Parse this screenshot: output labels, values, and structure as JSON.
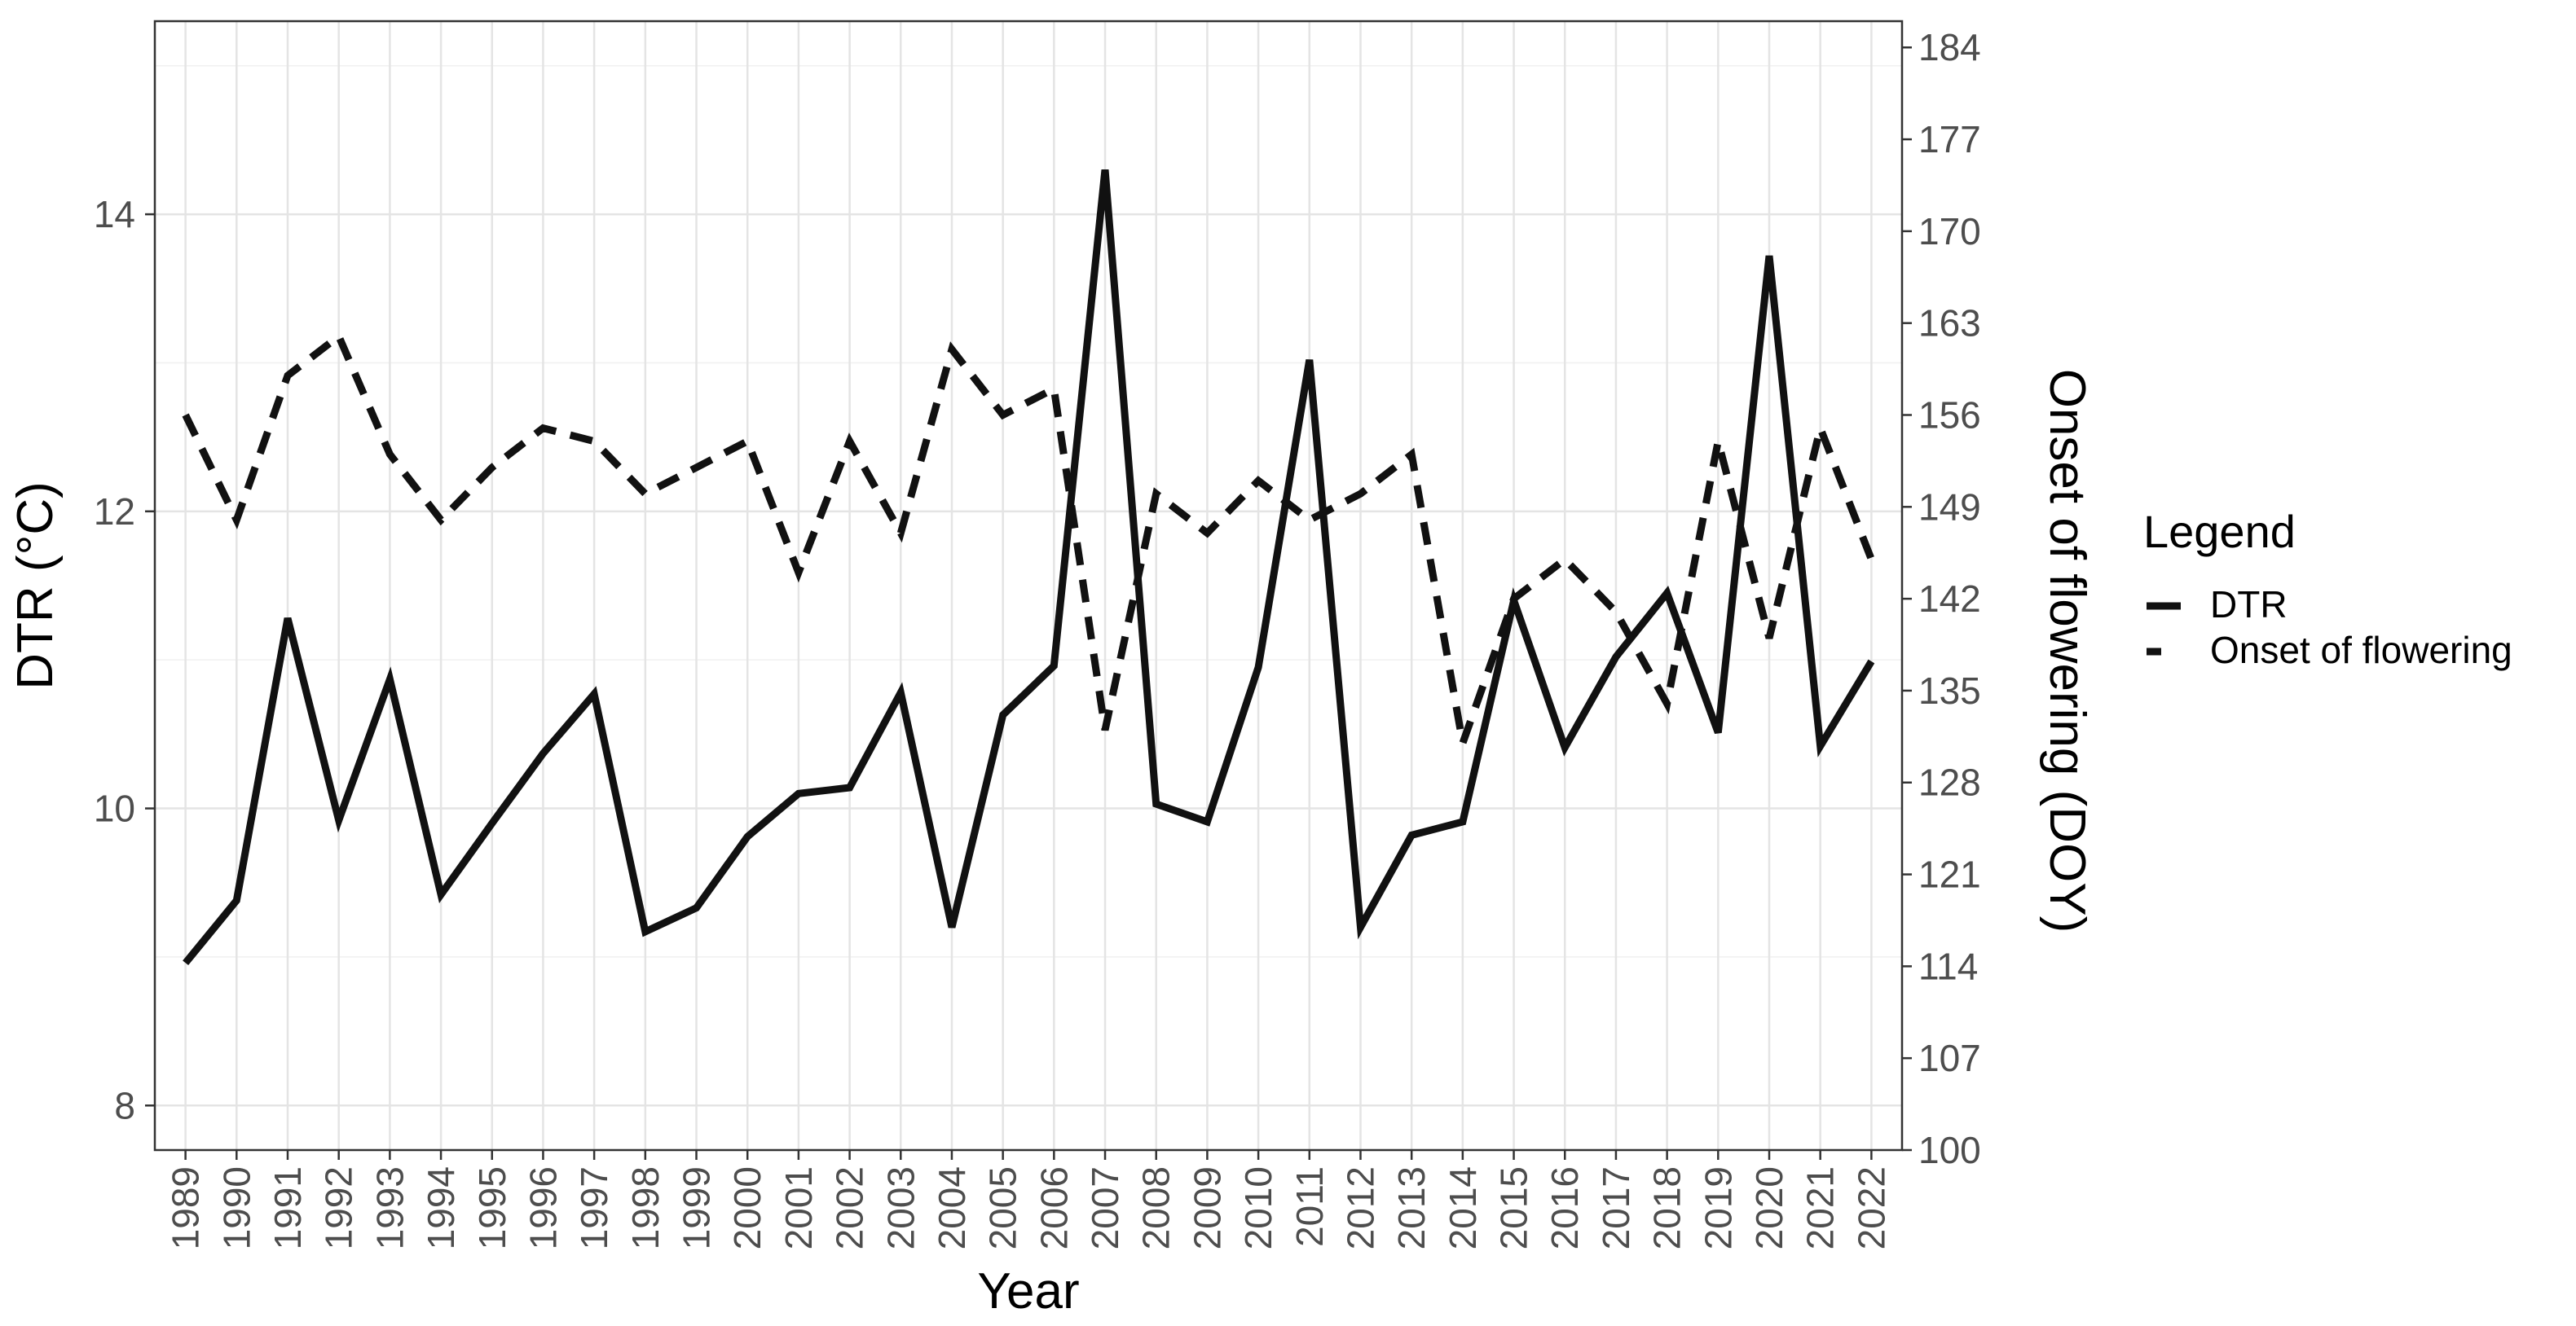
{
  "chart_data": {
    "type": "line",
    "title": "",
    "xlabel": "Year",
    "ylabel": "DTR (°C)",
    "y2label": "Onset of flowering (DOY)",
    "x": [
      1989,
      1990,
      1991,
      1992,
      1993,
      1994,
      1995,
      1996,
      1997,
      1998,
      1999,
      2000,
      2001,
      2002,
      2003,
      2004,
      2005,
      2006,
      2007,
      2008,
      2009,
      2010,
      2011,
      2012,
      2013,
      2014,
      2015,
      2016,
      2017,
      2018,
      2019,
      2020,
      2021,
      2022
    ],
    "x_tick_labels": [
      "1989",
      "1990",
      "1991",
      "1992",
      "1993",
      "1994",
      "1995",
      "1996",
      "1997",
      "1998",
      "1999",
      "2000",
      "2001",
      "2002",
      "2003",
      "2004",
      "2005",
      "2006",
      "2007",
      "2008",
      "2009",
      "2010",
      "2011",
      "2012",
      "2013",
      "2014",
      "2015",
      "2016",
      "2017",
      "2018",
      "2019",
      "2020",
      "2021",
      "2022"
    ],
    "ylim": [
      7.7,
      15.3
    ],
    "y_ticks": [
      8,
      10,
      12,
      14
    ],
    "y_tick_labels": [
      "8",
      "10",
      "12",
      "14"
    ],
    "y2lim": [
      100,
      186
    ],
    "y2_ticks": [
      100,
      107,
      114,
      121,
      128,
      135,
      142,
      149,
      156,
      163,
      170,
      177,
      184
    ],
    "y2_tick_labels": [
      "100",
      "107",
      "114",
      "121",
      "128",
      "135",
      "142",
      "149",
      "156",
      "163",
      "170",
      "177",
      "184"
    ],
    "grid": true,
    "legend": {
      "title": "Legend",
      "position": "right",
      "entries": [
        "DTR",
        "Onset of flowering"
      ]
    },
    "series": [
      {
        "name": "DTR",
        "axis": "left",
        "style": "solid",
        "color": "#111111",
        "values": [
          8.96,
          9.38,
          11.28,
          9.92,
          10.87,
          9.42,
          9.9,
          10.37,
          10.77,
          9.17,
          9.33,
          9.81,
          10.1,
          10.14,
          10.78,
          9.2,
          10.63,
          10.96,
          14.3,
          10.03,
          9.91,
          10.95,
          13.02,
          9.2,
          9.82,
          9.91,
          11.4,
          10.41,
          11.02,
          11.45,
          10.51,
          13.72,
          10.42,
          10.99
        ]
      },
      {
        "name": "Onset of flowering",
        "axis": "right",
        "style": "dashed",
        "color": "#111111",
        "values": [
          156,
          148,
          159,
          162,
          153,
          148,
          152,
          155,
          154,
          150,
          152,
          154,
          144,
          154,
          147,
          161,
          156,
          158,
          132,
          150,
          147,
          151,
          148,
          150,
          153,
          131,
          142,
          145,
          141,
          134,
          154,
          139,
          155,
          145
        ]
      }
    ]
  }
}
